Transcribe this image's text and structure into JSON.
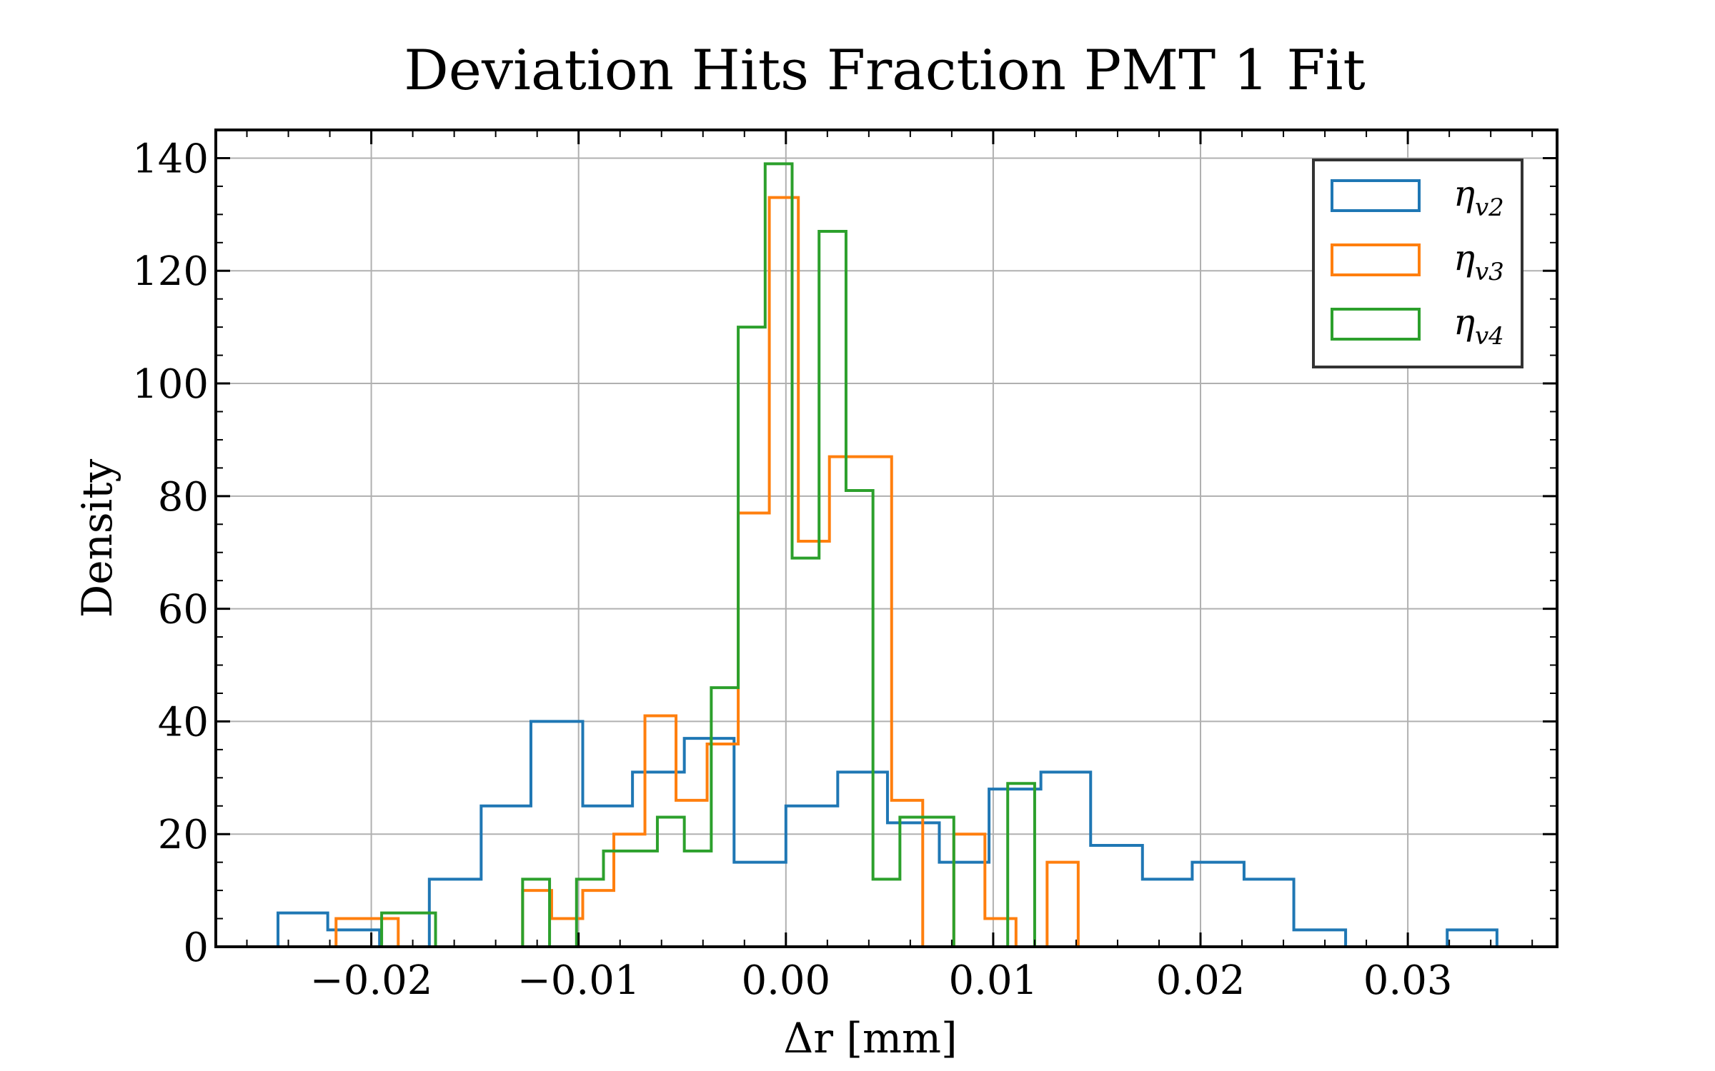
{
  "chart_data": {
    "type": "histogram",
    "title": "Deviation Hits Fraction PMT 1 Fit",
    "xlabel": "Δr [mm]",
    "ylabel": "Density",
    "xlim": [
      -0.0275,
      0.0372
    ],
    "ylim": [
      0,
      145
    ],
    "xticks": [
      -0.02,
      -0.01,
      0.0,
      0.01,
      0.02,
      0.03
    ],
    "xtick_labels": [
      "−0.02",
      "−0.01",
      "0.00",
      "0.01",
      "0.02",
      "0.03"
    ],
    "yticks": [
      0,
      20,
      40,
      60,
      80,
      100,
      120,
      140
    ],
    "ytick_labels": [
      "0",
      "20",
      "40",
      "60",
      "80",
      "100",
      "120",
      "140"
    ],
    "grid": true,
    "legend_position": "top-right",
    "series": [
      {
        "name": "η",
        "subscript": "v2",
        "color": "#1f77b4",
        "edges": [
          -0.0245,
          -0.0221,
          -0.0196,
          -0.0172,
          -0.0147,
          -0.0123,
          -0.0098,
          -0.0074,
          -0.0049,
          -0.0025,
          0.0,
          0.0025,
          0.0049,
          0.0074,
          0.0098,
          0.0123,
          0.0147,
          0.0172,
          0.0196,
          0.0221,
          0.0245,
          0.027,
          0.0294,
          0.0319,
          0.0343
        ],
        "values": [
          6,
          3,
          0,
          12,
          25,
          40,
          25,
          31,
          37,
          15,
          25,
          31,
          22,
          15,
          28,
          31,
          18,
          12,
          15,
          12,
          3,
          0,
          0,
          3
        ]
      },
      {
        "name": "η",
        "subscript": "v3",
        "color": "#ff7f0e",
        "edges": [
          -0.0217,
          -0.0187,
          -0.0157,
          -0.0127,
          -0.0113,
          -0.0098,
          -0.0083,
          -0.0068,
          -0.0053,
          -0.0038,
          -0.0023,
          -0.0008,
          0.0006,
          0.0021,
          0.0036,
          0.0051,
          0.0066,
          0.0081,
          0.0096,
          0.0111,
          0.0126,
          0.0141
        ],
        "values": [
          5,
          0,
          0,
          10,
          5,
          10,
          20,
          41,
          26,
          36,
          77,
          133,
          72,
          87,
          87,
          26,
          0,
          20,
          5,
          0,
          15
        ]
      },
      {
        "name": "η",
        "subscript": "v4",
        "color": "#2ca02c",
        "edges": [
          -0.0195,
          -0.0169,
          -0.0143,
          -0.0127,
          -0.0114,
          -0.0101,
          -0.0088,
          -0.0075,
          -0.0062,
          -0.0049,
          -0.0036,
          -0.0023,
          -0.001,
          0.0003,
          0.0016,
          0.0029,
          0.0042,
          0.0055,
          0.0068,
          0.0081,
          0.0094,
          0.0107,
          0.012
        ],
        "values": [
          6,
          0,
          0,
          12,
          0,
          12,
          17,
          17,
          23,
          17,
          46,
          110,
          139,
          69,
          127,
          81,
          12,
          23,
          23,
          0,
          0,
          29
        ]
      }
    ]
  }
}
